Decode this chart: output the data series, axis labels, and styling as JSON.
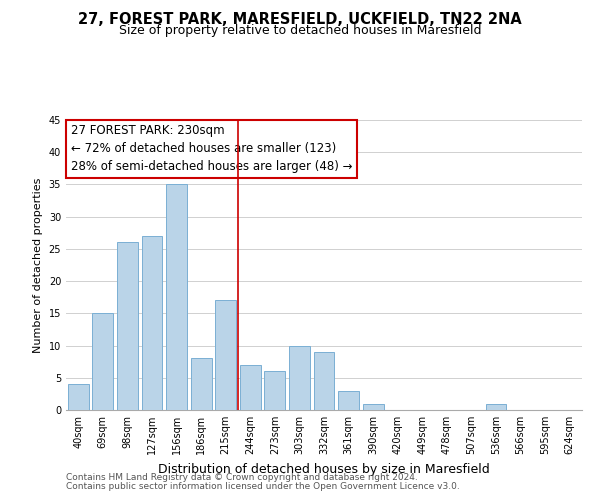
{
  "title": "27, FOREST PARK, MARESFIELD, UCKFIELD, TN22 2NA",
  "subtitle": "Size of property relative to detached houses in Maresfield",
  "xlabel": "Distribution of detached houses by size in Maresfield",
  "ylabel": "Number of detached properties",
  "footnote1": "Contains HM Land Registry data © Crown copyright and database right 2024.",
  "footnote2": "Contains public sector information licensed under the Open Government Licence v3.0.",
  "bar_labels": [
    "40sqm",
    "69sqm",
    "98sqm",
    "127sqm",
    "156sqm",
    "186sqm",
    "215sqm",
    "244sqm",
    "273sqm",
    "303sqm",
    "332sqm",
    "361sqm",
    "390sqm",
    "420sqm",
    "449sqm",
    "478sqm",
    "507sqm",
    "536sqm",
    "566sqm",
    "595sqm",
    "624sqm"
  ],
  "bar_values": [
    4,
    15,
    26,
    27,
    35,
    8,
    17,
    7,
    6,
    10,
    9,
    3,
    1,
    0,
    0,
    0,
    0,
    1,
    0,
    0,
    0
  ],
  "bar_color": "#bad4e8",
  "bar_edge_color": "#7aafd4",
  "reference_line_x": 6.5,
  "reference_line_color": "#cc0000",
  "annotation_line1": "27 FOREST PARK: 230sqm",
  "annotation_line2": "← 72% of detached houses are smaller (123)",
  "annotation_line3": "28% of semi-detached houses are larger (48) →",
  "ylim": [
    0,
    45
  ],
  "yticks": [
    0,
    5,
    10,
    15,
    20,
    25,
    30,
    35,
    40,
    45
  ],
  "bg_color": "#ffffff",
  "grid_color": "#d0d0d0",
  "title_fontsize": 10.5,
  "subtitle_fontsize": 9,
  "xlabel_fontsize": 9,
  "ylabel_fontsize": 8,
  "tick_fontsize": 7,
  "annotation_fontsize": 8.5,
  "footnote_fontsize": 6.5
}
